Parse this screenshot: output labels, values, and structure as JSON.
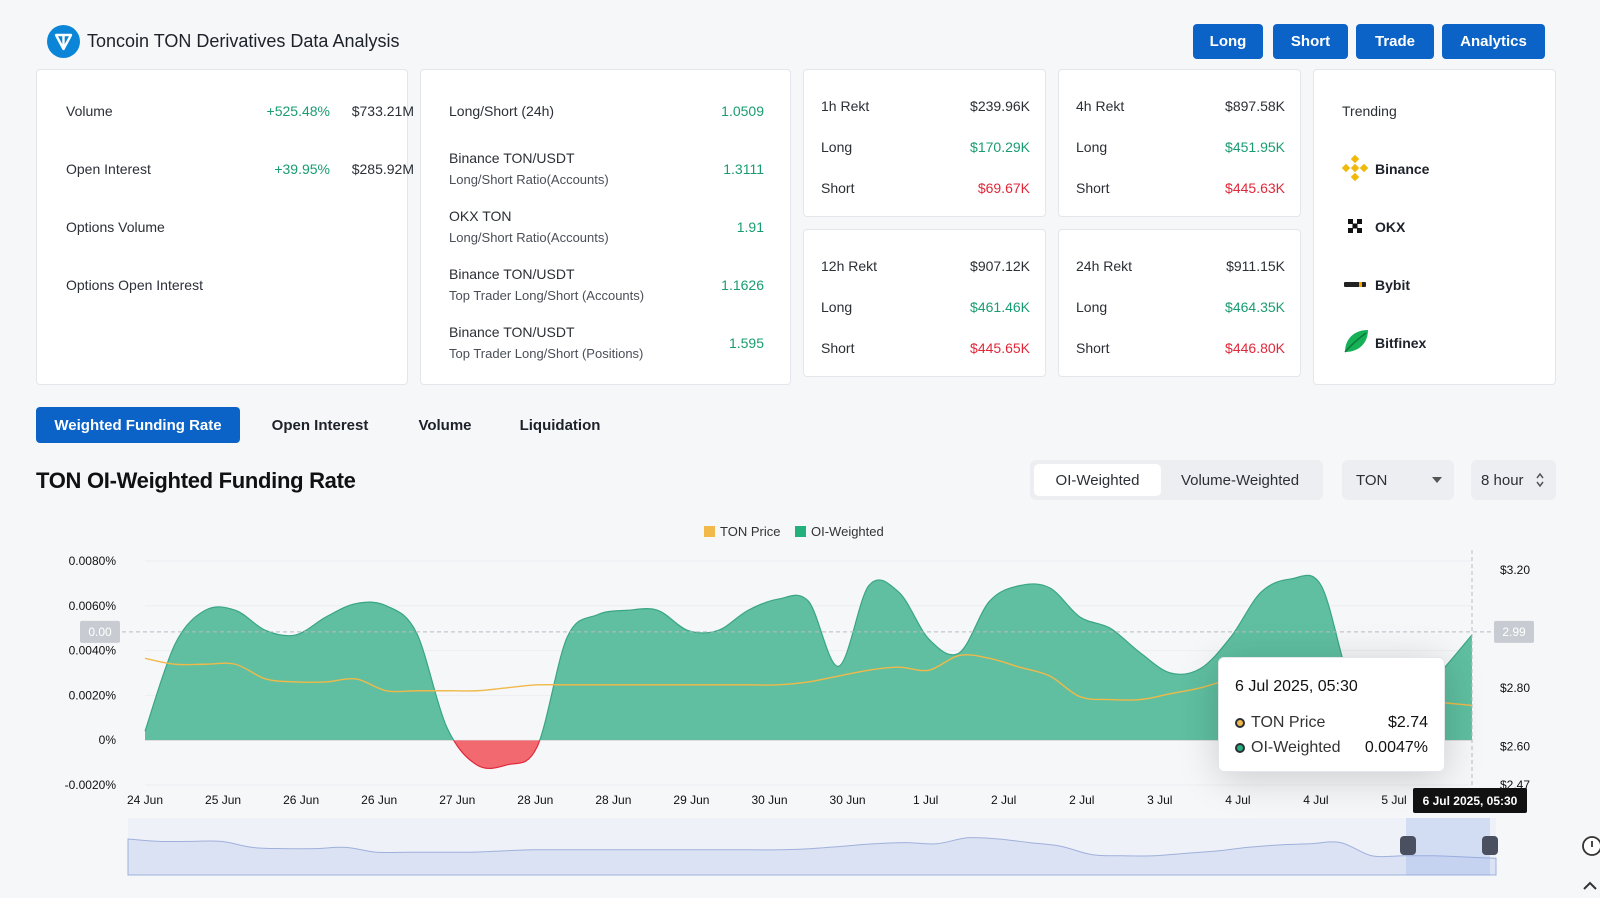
{
  "header": {
    "title": "Toncoin TON Derivatives Data Analysis",
    "buttons": [
      "Long",
      "Short",
      "Trade",
      "Analytics"
    ],
    "brand_color": "#0b63c8"
  },
  "overview": [
    {
      "label": "Volume",
      "change": "+525.48%",
      "value": "$733.21M"
    },
    {
      "label": "Open Interest",
      "change": "+39.95%",
      "value": "$285.92M"
    },
    {
      "label": "Options Volume",
      "change": "",
      "value": ""
    },
    {
      "label": "Options Open Interest",
      "change": "",
      "value": ""
    }
  ],
  "ratios": [
    {
      "label": "Long/Short (24h)",
      "sub": "",
      "value": "1.0509"
    },
    {
      "label": "Binance TON/USDT",
      "sub": "Long/Short Ratio(Accounts)",
      "value": "1.3111"
    },
    {
      "label": "OKX TON",
      "sub": "Long/Short Ratio(Accounts)",
      "value": "1.91"
    },
    {
      "label": "Binance TON/USDT",
      "sub": "Top Trader Long/Short (Accounts)",
      "value": "1.1626"
    },
    {
      "label": "Binance TON/USDT",
      "sub": "Top Trader Long/Short (Positions)",
      "value": "1.595"
    }
  ],
  "rekt": [
    {
      "label": "1h Rekt",
      "total": "$239.96K",
      "long": "$170.29K",
      "short": "$69.67K"
    },
    {
      "label": "4h Rekt",
      "total": "$897.58K",
      "long": "$451.95K",
      "short": "$445.63K"
    },
    {
      "label": "12h Rekt",
      "total": "$907.12K",
      "long": "$461.46K",
      "short": "$445.65K"
    },
    {
      "label": "24h Rekt",
      "total": "$911.15K",
      "long": "$464.35K",
      "short": "$446.80K"
    }
  ],
  "rekt_labels": {
    "long": "Long",
    "short": "Short"
  },
  "trending": {
    "title": "Trending",
    "exchanges": [
      {
        "name": "Binance",
        "icon": "binance-icon"
      },
      {
        "name": "OKX",
        "icon": "okx-icon"
      },
      {
        "name": "Bybit",
        "icon": "bybit-icon"
      },
      {
        "name": "Bitfinex",
        "icon": "bitfinex-icon"
      }
    ]
  },
  "tabs": [
    "Weighted Funding Rate",
    "Open Interest",
    "Volume",
    "Liquidation"
  ],
  "chart_section": {
    "title": "TON OI-Weighted Funding Rate",
    "segments": [
      "OI-Weighted",
      "Volume-Weighted"
    ],
    "symbol": "TON",
    "interval": "8 hour"
  },
  "chart_data": {
    "type": "area",
    "legend": [
      "TON Price",
      "OI-Weighted"
    ],
    "colors": {
      "price": "#f0b94a",
      "oi_pos": "#5fbfa0",
      "oi_neg": "#f26a6f"
    },
    "x_ticks": [
      "24 Jun",
      "25 Jun",
      "26 Jun",
      "26 Jun",
      "27 Jun",
      "28 Jun",
      "28 Jun",
      "29 Jun",
      "30 Jun",
      "30 Jun",
      "1 Jul",
      "2 Jul",
      "2 Jul",
      "3 Jul",
      "4 Jul",
      "4 Jul",
      "5 Jul"
    ],
    "y_left_ticks": [
      "0.0080%",
      "0.0060%",
      "0.0040%",
      "0.0020%",
      "0%",
      "-0.0020%"
    ],
    "y_left_range": [
      -0.002,
      0.008
    ],
    "y_right_ticks": [
      "$3.20",
      "$2.80",
      "$2.60",
      "$2.47"
    ],
    "y_right_range": [
      2.47,
      3.2
    ],
    "crosshair_left": "0.00",
    "crosshair_right": "2.99",
    "series": [
      {
        "name": "OI-Weighted",
        "values": [
          0.0004,
          0.0043,
          0.0058,
          0.0058,
          0.0049,
          0.0047,
          0.0055,
          0.0061,
          0.006,
          0.0048,
          0.0006,
          -0.0011,
          -0.0011,
          -0.0003,
          0.0046,
          0.0056,
          0.0058,
          0.0058,
          0.0049,
          0.0049,
          0.0058,
          0.0063,
          0.0062,
          0.0033,
          0.0069,
          0.0066,
          0.0045,
          0.0039,
          0.0062,
          0.0069,
          0.0068,
          0.0055,
          0.005,
          0.0039,
          0.003,
          0.0032,
          0.0046,
          0.0066,
          0.0072,
          0.0069,
          0.0025,
          0.0018,
          0.0016,
          0.0031,
          0.0047
        ]
      },
      {
        "name": "TON Price",
        "values": [
          2.9,
          2.88,
          2.88,
          2.88,
          2.83,
          2.82,
          2.82,
          2.83,
          2.79,
          2.79,
          2.79,
          2.79,
          2.8,
          2.81,
          2.81,
          2.81,
          2.81,
          2.81,
          2.81,
          2.81,
          2.81,
          2.81,
          2.82,
          2.84,
          2.86,
          2.87,
          2.86,
          2.91,
          2.9,
          2.87,
          2.84,
          2.77,
          2.76,
          2.76,
          2.78,
          2.8,
          2.83,
          2.85,
          2.86,
          2.87,
          2.76,
          2.76,
          2.76,
          2.75,
          2.74
        ]
      }
    ]
  },
  "tooltip": {
    "date": "6 Jul 2025, 05:30",
    "rows": [
      {
        "label": "TON Price",
        "value": "$2.74"
      },
      {
        "label": "OI-Weighted",
        "value": "0.0047%"
      }
    ]
  },
  "x_axis_pointer": "6 Jul 2025, 05:30"
}
